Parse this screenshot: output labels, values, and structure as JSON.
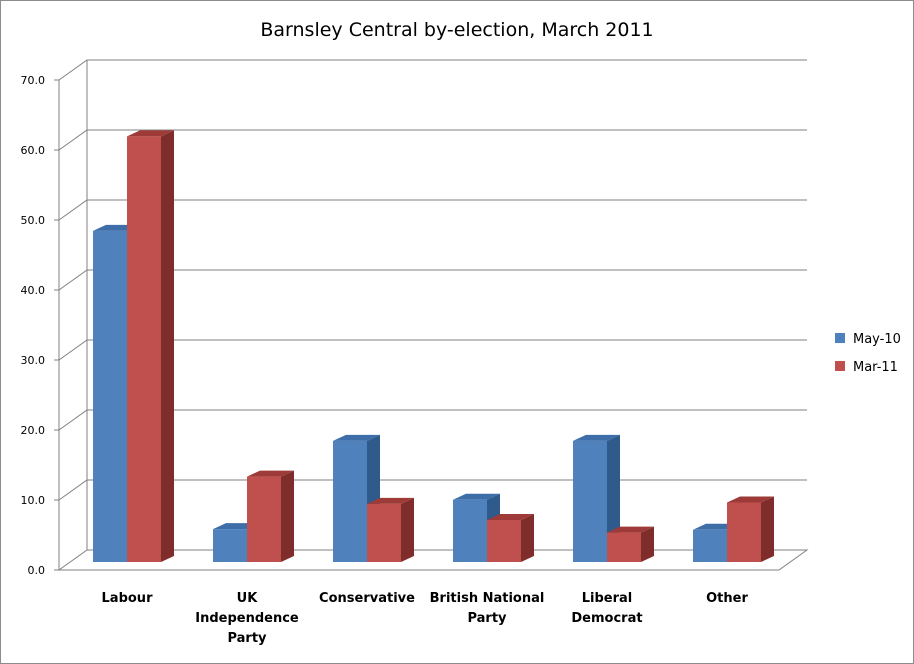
{
  "chart_data": {
    "type": "bar",
    "title": "Barnsley Central by-election, March 2011",
    "categories": [
      [
        "Labour"
      ],
      [
        "UK",
        "Independence",
        "Party"
      ],
      [
        "Conservative"
      ],
      [
        "British National",
        "Party"
      ],
      [
        "Liberal",
        "Democrat"
      ],
      [
        "Other"
      ]
    ],
    "series": [
      {
        "name": "May-10",
        "values": [
          47.3,
          4.7,
          17.3,
          8.9,
          17.3,
          4.6
        ],
        "color": "#4f81bd",
        "side": "#2f5a8c",
        "top": "#3d6ea8"
      },
      {
        "name": "Mar-11",
        "values": [
          60.8,
          12.2,
          8.3,
          6.0,
          4.2,
          8.5
        ],
        "color": "#c0504d",
        "side": "#7f2d2b",
        "top": "#9e3a37"
      }
    ],
    "y_ticks": [
      "0.0",
      "10.0",
      "20.0",
      "30.0",
      "40.0",
      "50.0",
      "60.0",
      "70.0"
    ],
    "ylim": [
      0,
      70
    ],
    "grid": true,
    "legend_position": "right"
  }
}
